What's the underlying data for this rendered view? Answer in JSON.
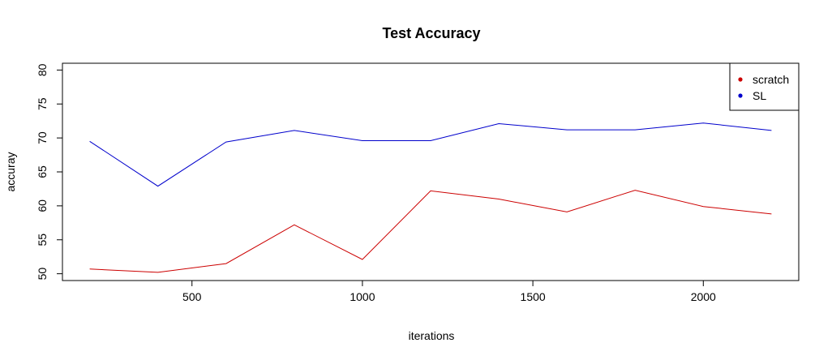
{
  "chart_data": {
    "type": "line",
    "title": "Test Accuracy",
    "xlabel": "iterations",
    "ylabel": "accuray",
    "x": [
      200,
      400,
      600,
      800,
      1000,
      1200,
      1400,
      1600,
      1800,
      2000,
      2200
    ],
    "xlim": [
      120,
      2280
    ],
    "ylim": [
      49,
      81
    ],
    "x_ticks": [
      500,
      1000,
      1500,
      2000
    ],
    "y_ticks": [
      50,
      55,
      60,
      65,
      70,
      75,
      80
    ],
    "grid": false,
    "legend_position": "top-right",
    "series": [
      {
        "name": "scratch",
        "color": "#cc0000",
        "values": [
          50.7,
          50.2,
          51.5,
          57.2,
          52.1,
          62.2,
          61.0,
          59.1,
          62.3,
          59.9,
          58.8
        ]
      },
      {
        "name": "SL",
        "color": "#0000cc",
        "values": [
          69.5,
          62.9,
          69.4,
          71.1,
          69.6,
          69.6,
          72.1,
          71.2,
          71.2,
          72.2,
          71.1
        ]
      }
    ]
  }
}
